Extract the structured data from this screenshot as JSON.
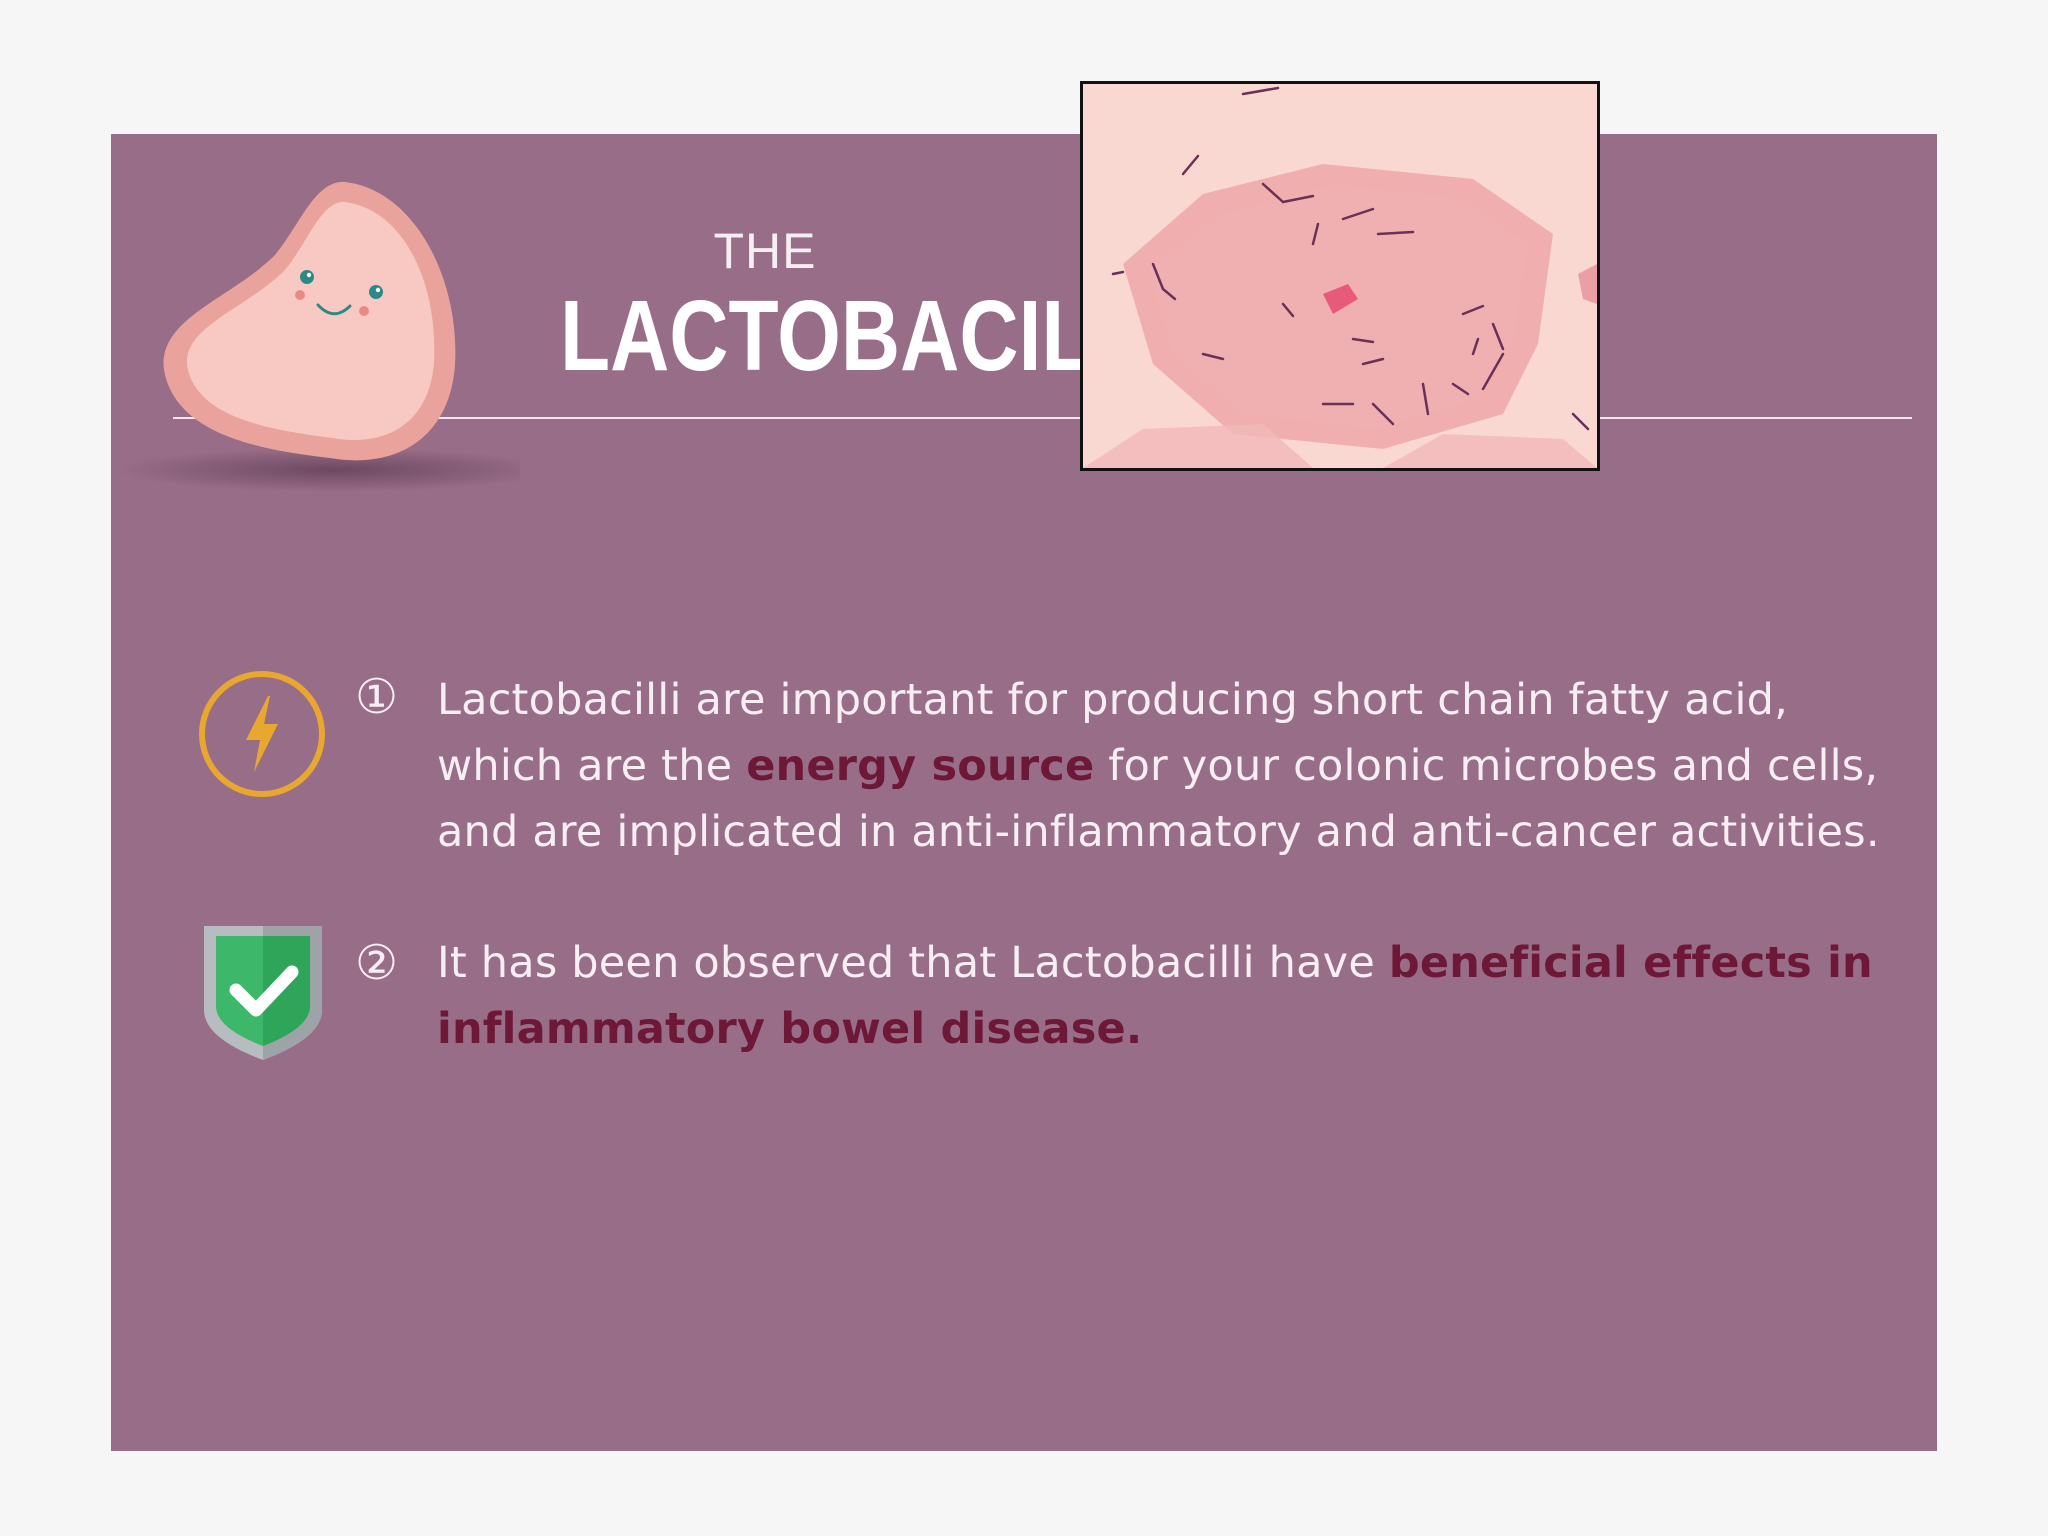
{
  "header": {
    "title_prefix": "THE",
    "title_main": "LACTOBACILLI"
  },
  "images": {
    "mascot": "smiling-bacterium-illustration",
    "micrograph": "lactobacilli-gram-stain-micrograph"
  },
  "points": [
    {
      "number": "①",
      "icon": "lightning-bolt-icon",
      "text_before": "Lactobacilli are important for producing short chain fatty acid, which are the ",
      "emphasis": "energy source",
      "text_after": " for your colonic microbes and cells, and are implicated in anti-inflammatory and anti-cancer activities."
    },
    {
      "number": "②",
      "icon": "shield-check-icon",
      "text_before": "It has been observed that Lactobacilli have ",
      "emphasis": "beneficial effects in inflammatory bowel disease.",
      "text_after": ""
    }
  ],
  "colors": {
    "panel": "#986d88",
    "emphasis": "#6e1838",
    "bolt": "#e8a830",
    "shield_green": "#3db86a"
  }
}
